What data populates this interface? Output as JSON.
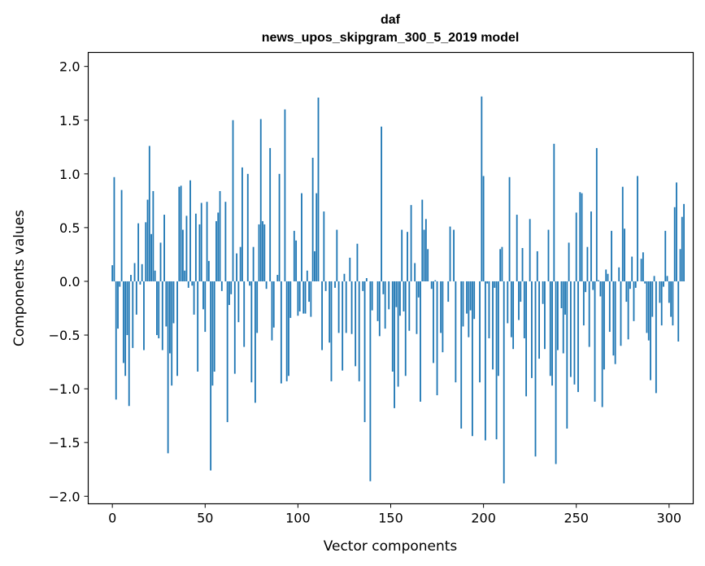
{
  "chart_data": {
    "type": "bar",
    "title_line1": "daf",
    "title_line2": "news_upos_skipgram_300_5_2019 model",
    "xlabel": "Vector components",
    "ylabel": "Components values",
    "xlim": [
      -13,
      313
    ],
    "ylim": [
      -2.07,
      2.13
    ],
    "xticks": [
      0,
      50,
      100,
      150,
      200,
      250,
      300
    ],
    "xtick_labels": [
      "0",
      "50",
      "100",
      "150",
      "200",
      "250",
      "300"
    ],
    "yticks": [
      -2.0,
      -1.5,
      -1.0,
      -0.5,
      0.0,
      0.5,
      1.0,
      1.5,
      2.0
    ],
    "ytick_labels": [
      "−2.0",
      "−1.5",
      "−1.0",
      "−0.5",
      "0.0",
      "0.5",
      "1.0",
      "1.5",
      "2.0"
    ],
    "bar_color": "#1f77b4",
    "grid": false,
    "values": [
      0.15,
      0.97,
      -1.1,
      -0.44,
      -0.05,
      0.85,
      -0.76,
      -0.88,
      -0.5,
      -1.16,
      0.06,
      -0.62,
      0.17,
      -0.31,
      0.54,
      -0.03,
      0.16,
      -0.64,
      0.55,
      0.76,
      1.26,
      0.44,
      0.84,
      0.1,
      -0.5,
      -0.53,
      0.36,
      -0.64,
      0.62,
      -0.42,
      -1.6,
      -0.67,
      -0.97,
      -0.39,
      0.0,
      -0.88,
      0.88,
      0.89,
      0.48,
      0.1,
      0.61,
      -0.06,
      0.94,
      -0.04,
      -0.31,
      0.63,
      -0.84,
      0.53,
      0.73,
      -0.26,
      -0.47,
      0.74,
      0.19,
      -1.76,
      -0.97,
      -0.84,
      0.56,
      0.64,
      0.84,
      -0.09,
      0.0,
      0.74,
      -1.31,
      -0.22,
      -0.12,
      1.5,
      -0.86,
      0.26,
      -0.38,
      0.32,
      1.06,
      -0.61,
      0.0,
      1.0,
      -0.04,
      -0.94,
      0.32,
      -1.13,
      -0.48,
      0.53,
      1.51,
      0.56,
      0.53,
      -0.07,
      0.0,
      1.24,
      -0.55,
      -0.43,
      0.0,
      0.06,
      1.0,
      -0.95,
      0.0,
      1.6,
      -0.93,
      -0.88,
      -0.34,
      0.0,
      0.47,
      0.38,
      -0.32,
      -0.28,
      0.82,
      -0.3,
      -0.3,
      0.1,
      -0.19,
      -0.33,
      1.15,
      0.28,
      0.82,
      1.71,
      0.0,
      -0.64,
      0.65,
      -0.09,
      0.0,
      -0.57,
      -0.93,
      0.0,
      -0.06,
      0.48,
      -0.48,
      0.0,
      -0.83,
      0.07,
      -0.48,
      0.0,
      0.22,
      -0.49,
      0.0,
      -0.79,
      0.35,
      -0.93,
      0.0,
      -0.09,
      -1.31,
      0.03,
      0.0,
      -1.86,
      -0.27,
      0.0,
      0.0,
      -0.37,
      -0.51,
      1.44,
      -0.12,
      -0.44,
      0.0,
      -0.26,
      0.0,
      -0.84,
      -1.18,
      -0.24,
      -0.98,
      -0.32,
      0.48,
      -0.28,
      -0.88,
      0.46,
      -0.46,
      0.71,
      0.0,
      0.17,
      -0.49,
      -0.15,
      -1.12,
      0.76,
      0.48,
      0.58,
      0.3,
      0.0,
      -0.07,
      -0.76,
      0.01,
      -1.06,
      0.0,
      -0.48,
      -0.66,
      0.0,
      0.0,
      -0.19,
      0.51,
      0.0,
      0.48,
      -0.94,
      0.0,
      0.0,
      -1.37,
      -0.42,
      0.0,
      -0.3,
      -0.52,
      -0.27,
      -1.44,
      -0.35,
      0.0,
      0.0,
      -0.94,
      1.72,
      0.98,
      -1.48,
      -0.02,
      -0.53,
      0.0,
      -0.82,
      -0.06,
      -1.47,
      -0.88,
      0.3,
      0.32,
      -1.88,
      0.0,
      -0.39,
      0.97,
      -0.52,
      -0.63,
      0.0,
      0.62,
      -0.36,
      -0.19,
      0.31,
      -0.53,
      -1.07,
      0.0,
      0.58,
      -0.9,
      0.0,
      -1.63,
      0.28,
      -0.72,
      0.0,
      -0.21,
      -0.63,
      0.0,
      0.48,
      -0.88,
      -0.97,
      1.28,
      -1.7,
      -0.64,
      0.0,
      -0.25,
      -0.67,
      -0.31,
      -1.37,
      0.36,
      -0.89,
      0.0,
      -0.96,
      0.64,
      -1.03,
      0.83,
      0.82,
      -0.41,
      -0.1,
      0.32,
      -0.61,
      0.65,
      -0.08,
      -1.12,
      1.24,
      0.01,
      -0.14,
      -1.17,
      -0.82,
      0.11,
      0.07,
      -0.47,
      0.47,
      -0.69,
      -0.77,
      0.0,
      0.13,
      -0.6,
      0.88,
      0.49,
      -0.19,
      -0.54,
      -0.07,
      0.23,
      -0.37,
      -0.06,
      0.98,
      0.0,
      0.21,
      0.27,
      -0.02,
      -0.48,
      -0.55,
      -0.92,
      -0.33,
      0.05,
      -1.04,
      0.0,
      -0.2,
      -0.41,
      -0.05,
      0.47,
      0.05,
      -0.2,
      -0.33,
      -0.41,
      0.69,
      0.92,
      -0.56,
      0.3,
      0.6,
      0.72,
      0.0
    ]
  }
}
